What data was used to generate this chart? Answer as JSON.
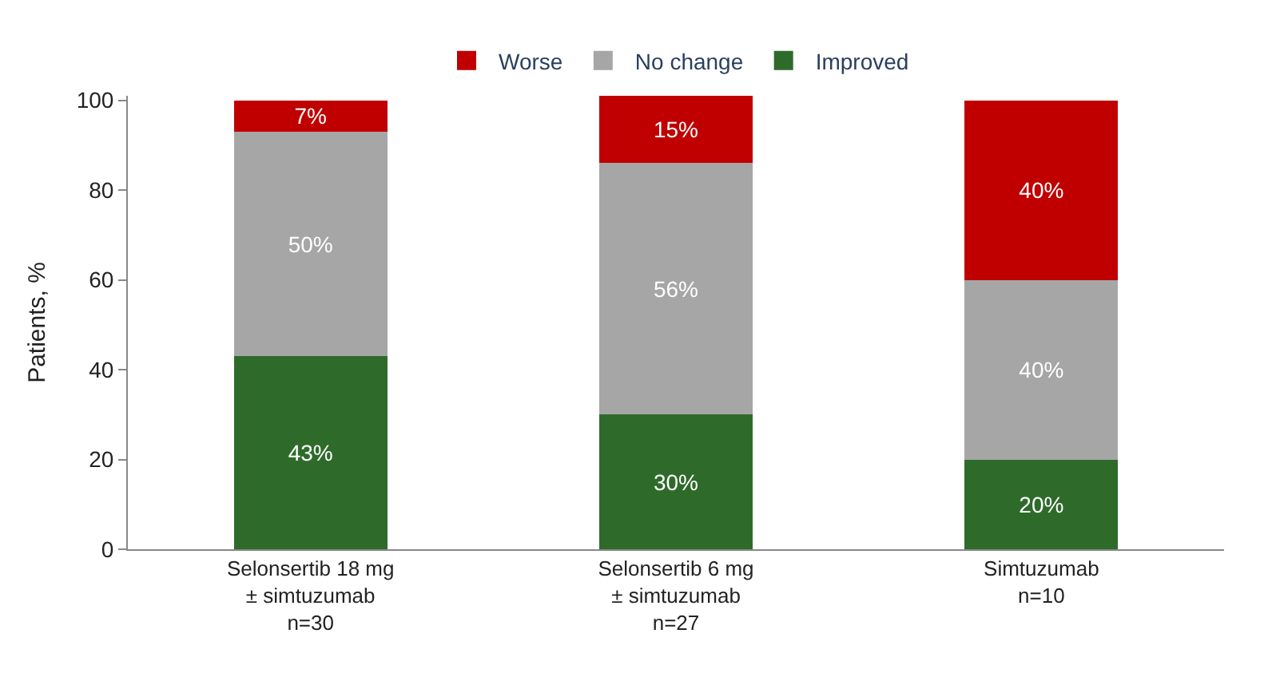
{
  "chart_data": {
    "type": "bar",
    "stacked": true,
    "ylabel": "Patients, %",
    "categories": [
      "Selonsertib 18 mg\n± simtuzumab\nn=30",
      "Selonsertib 6 mg\n± simtuzumab\nn=27",
      "Simtuzumab\nn=10"
    ],
    "series": [
      {
        "name": "Improved",
        "color": "#2e6b2a",
        "values": [
          43,
          30,
          20
        ],
        "value_labels": [
          "43%",
          "30%",
          "20%"
        ]
      },
      {
        "name": "No change",
        "color": "#a6a6a6",
        "values": [
          50,
          56,
          40
        ],
        "value_labels": [
          "50%",
          "56%",
          "40%"
        ]
      },
      {
        "name": "Worse",
        "color": "#c00000",
        "values": [
          7,
          15,
          40
        ],
        "value_labels": [
          "7%",
          "15%",
          "40%"
        ]
      }
    ],
    "ylim": [
      0,
      101
    ],
    "yticks": [
      0,
      20,
      40,
      60,
      80,
      100
    ],
    "legend": "top"
  }
}
